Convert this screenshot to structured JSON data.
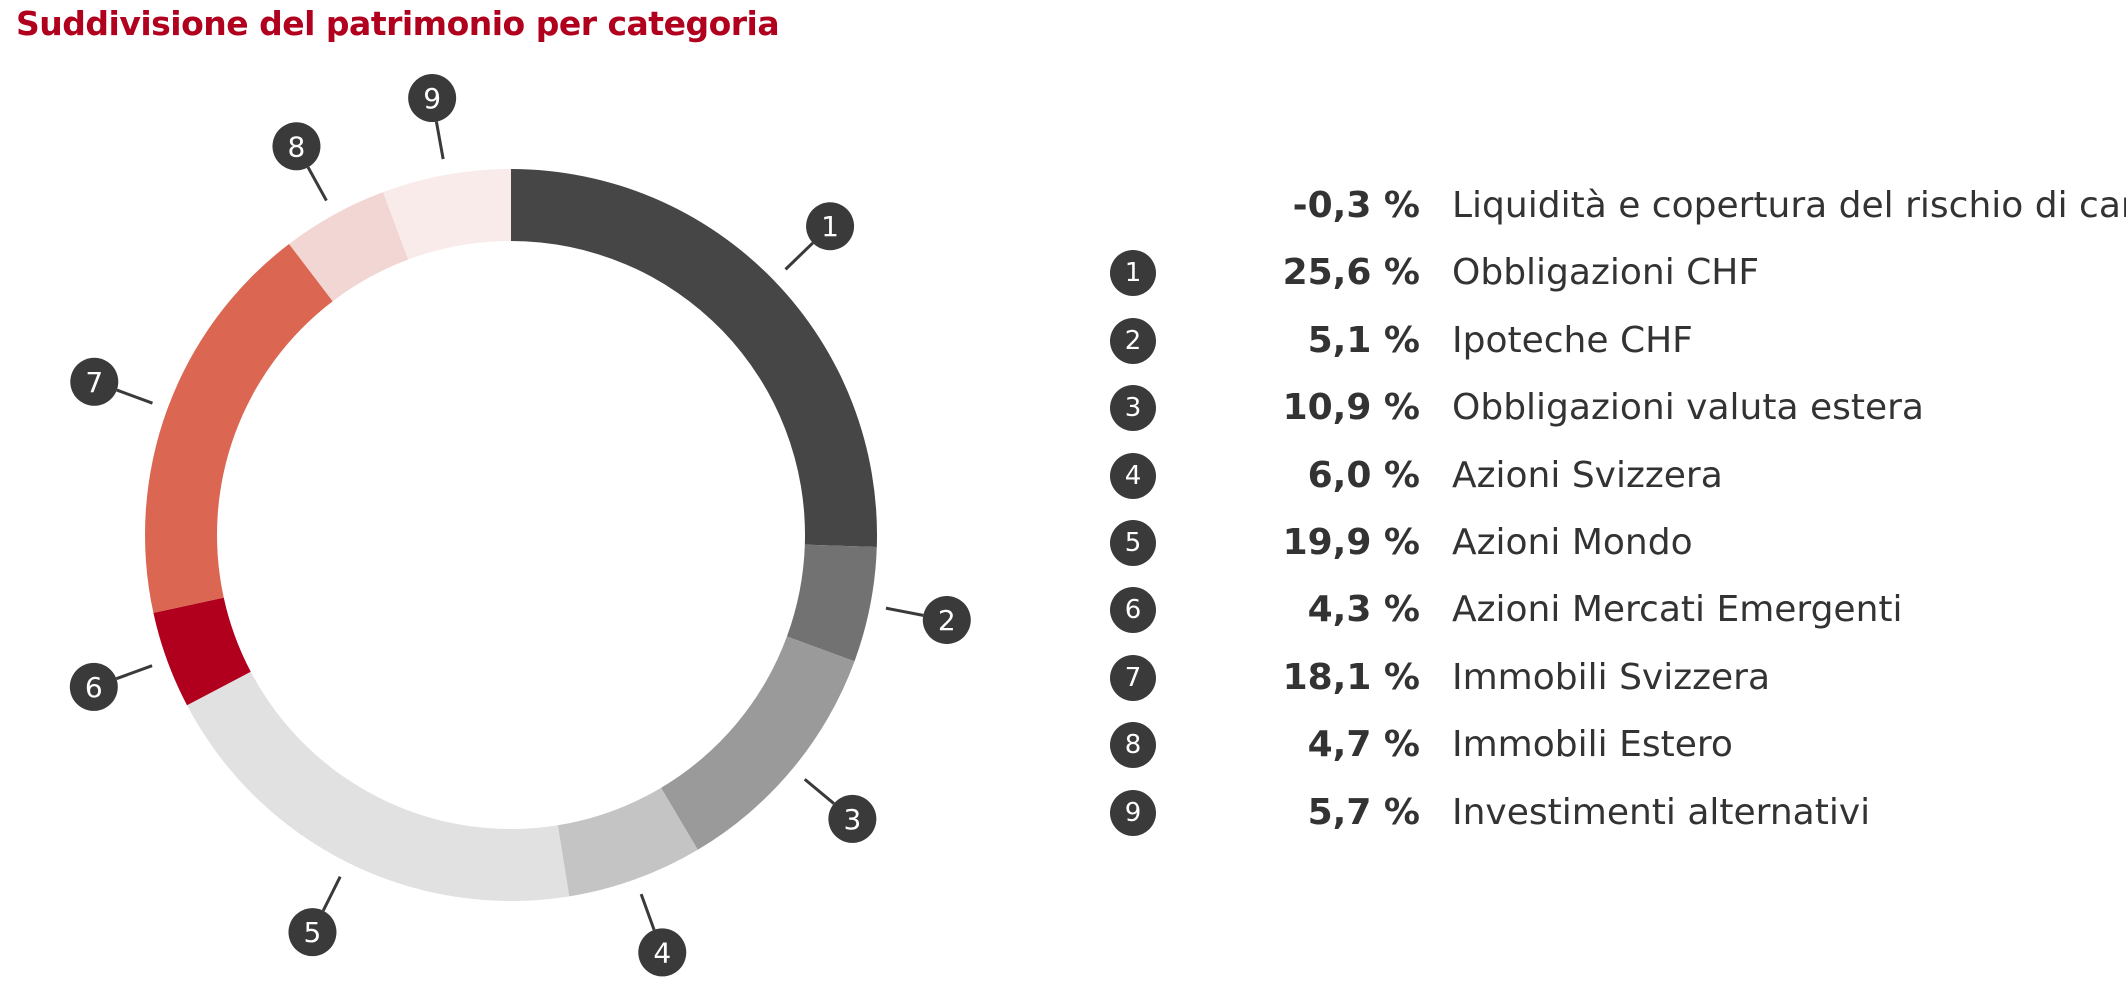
{
  "title": "Suddivisione del patrimonio per categoria",
  "chart_data": {
    "type": "pie",
    "title": "Suddivisione del patrimonio per categoria",
    "donut": true,
    "unit": "%",
    "slices": [
      {
        "badge": "",
        "label": "Liquidità e copertura del rischio di cambio",
        "value": -0.3,
        "display": "-0,3 %",
        "color": null
      },
      {
        "badge": "1",
        "label": "Obbligazioni CHF",
        "value": 25.6,
        "display": "25,6 %",
        "color": "#464646"
      },
      {
        "badge": "2",
        "label": "Ipoteche CHF",
        "value": 5.1,
        "display": "5,1 %",
        "color": "#727272"
      },
      {
        "badge": "3",
        "label": "Obbligazioni valuta estera",
        "value": 10.9,
        "display": "10,9 %",
        "color": "#9a9a9a"
      },
      {
        "badge": "4",
        "label": "Azioni Svizzera",
        "value": 6.0,
        "display": "6,0 %",
        "color": "#c4c4c4"
      },
      {
        "badge": "5",
        "label": "Azioni Mondo",
        "value": 19.9,
        "display": "19,9 %",
        "color": "#e1e1e1"
      },
      {
        "badge": "6",
        "label": "Azioni Mercati Emergenti",
        "value": 4.3,
        "display": "4,3 %",
        "color": "#b0001e"
      },
      {
        "badge": "7",
        "label": "Immobili Svizzera",
        "value": 18.1,
        "display": "18,1 %",
        "color": "#db6753"
      },
      {
        "badge": "8",
        "label": "Immobili Estero",
        "value": 4.7,
        "display": "4,7 %",
        "color": "#f2d6d3"
      },
      {
        "badge": "9",
        "label": "Investimenti alternativi",
        "value": 5.7,
        "display": "5,7 %",
        "color": "#f9ebea"
      }
    ]
  }
}
